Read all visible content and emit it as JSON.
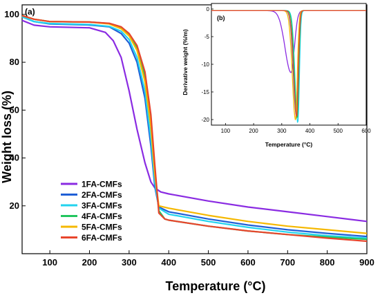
{
  "chart_data": [
    {
      "panel": "(a)",
      "type": "line",
      "xlabel": "Temperature (°C)",
      "ylabel": "Weight loss (%)",
      "xlim": [
        30,
        900
      ],
      "ylim": [
        0,
        104
      ],
      "xticks": [
        100,
        200,
        300,
        400,
        500,
        600,
        700,
        800,
        900
      ],
      "yticks": [
        20,
        40,
        60,
        80,
        100
      ],
      "grid": false,
      "legend": "bottom-left",
      "series": [
        {
          "name": "1FA-CMFs",
          "color": "#8a2be2",
          "points": [
            [
              30,
              97.5
            ],
            [
              60,
              95.5
            ],
            [
              100,
              94.8
            ],
            [
              200,
              94.4
            ],
            [
              240,
              92.5
            ],
            [
              260,
              89
            ],
            [
              280,
              82
            ],
            [
              300,
              68
            ],
            [
              320,
              52
            ],
            [
              340,
              38
            ],
            [
              355,
              30
            ],
            [
              365,
              27.5
            ],
            [
              380,
              25.8
            ],
            [
              400,
              25
            ],
            [
              500,
              22
            ],
            [
              600,
              19.5
            ],
            [
              700,
              17.5
            ],
            [
              800,
              15.5
            ],
            [
              900,
              13.5
            ]
          ]
        },
        {
          "name": "2FA-CMFs",
          "color": "#1f5fd6",
          "points": [
            [
              30,
              99
            ],
            [
              60,
              97
            ],
            [
              100,
              96
            ],
            [
              200,
              95.6
            ],
            [
              250,
              94.8
            ],
            [
              280,
              92
            ],
            [
              300,
              88
            ],
            [
              320,
              80
            ],
            [
              340,
              65
            ],
            [
              355,
              45
            ],
            [
              365,
              28
            ],
            [
              375,
              19.5
            ],
            [
              400,
              17.5
            ],
            [
              500,
              14.5
            ],
            [
              600,
              12
            ],
            [
              700,
              10
            ],
            [
              800,
              8.5
            ],
            [
              900,
              7.2
            ]
          ]
        },
        {
          "name": "3FA-CMFs",
          "color": "#22d3ee",
          "points": [
            [
              30,
              99
            ],
            [
              60,
              97
            ],
            [
              100,
              96.2
            ],
            [
              200,
              95.8
            ],
            [
              250,
              95
            ],
            [
              280,
              93
            ],
            [
              300,
              89.5
            ],
            [
              320,
              82
            ],
            [
              340,
              68
            ],
            [
              355,
              48
            ],
            [
              365,
              30
            ],
            [
              375,
              19
            ],
            [
              400,
              16.5
            ],
            [
              500,
              13.5
            ],
            [
              600,
              11
            ],
            [
              700,
              9
            ],
            [
              800,
              7.5
            ],
            [
              900,
              6.5
            ]
          ]
        },
        {
          "name": "4FA-CMFs",
          "color": "#22c55e",
          "points": [
            [
              30,
              99.5
            ],
            [
              60,
              98
            ],
            [
              100,
              97
            ],
            [
              200,
              96.8
            ],
            [
              250,
              96.2
            ],
            [
              280,
              94.5
            ],
            [
              300,
              91.5
            ],
            [
              320,
              86
            ],
            [
              340,
              74
            ],
            [
              355,
              55
            ],
            [
              365,
              35
            ],
            [
              375,
              18
            ],
            [
              390,
              14.5
            ],
            [
              400,
              14
            ],
            [
              500,
              11.5
            ],
            [
              600,
              9.5
            ],
            [
              700,
              8
            ],
            [
              800,
              7
            ],
            [
              900,
              6
            ]
          ]
        },
        {
          "name": "5FA-CMFs",
          "color": "#f5b800",
          "points": [
            [
              30,
              99.5
            ],
            [
              60,
              98
            ],
            [
              100,
              97
            ],
            [
              200,
              96.8
            ],
            [
              250,
              96
            ],
            [
              280,
              94
            ],
            [
              300,
              91
            ],
            [
              320,
              85
            ],
            [
              340,
              72
            ],
            [
              355,
              53
            ],
            [
              365,
              33
            ],
            [
              375,
              20
            ],
            [
              400,
              19
            ],
            [
              500,
              16
            ],
            [
              600,
              13.5
            ],
            [
              700,
              11.5
            ],
            [
              800,
              10
            ],
            [
              900,
              8.5
            ]
          ]
        },
        {
          "name": "6FA-CMFs",
          "color": "#e8452c",
          "points": [
            [
              30,
              99.5
            ],
            [
              60,
              98
            ],
            [
              100,
              97
            ],
            [
              200,
              96.8
            ],
            [
              250,
              96.3
            ],
            [
              280,
              94.8
            ],
            [
              300,
              92
            ],
            [
              320,
              87
            ],
            [
              340,
              76
            ],
            [
              355,
              58
            ],
            [
              365,
              37
            ],
            [
              375,
              17
            ],
            [
              390,
              14.5
            ],
            [
              400,
              14
            ],
            [
              500,
              11.5
            ],
            [
              600,
              9.5
            ],
            [
              700,
              8
            ],
            [
              800,
              6.5
            ],
            [
              900,
              5.2
            ]
          ]
        }
      ]
    },
    {
      "panel": "(b)",
      "type": "line",
      "xlabel": "Temperature (°C)",
      "ylabel": "Derivative weight (%/m)",
      "xlim": [
        50,
        600
      ],
      "ylim": [
        -21,
        1
      ],
      "xticks": [
        100,
        200,
        300,
        400,
        500,
        600
      ],
      "yticks": [
        0,
        -5,
        -10,
        -15,
        -20
      ],
      "grid": false,
      "series": [
        {
          "name": "1FA-CMFs",
          "color": "#8a2be2",
          "peak_x": 333,
          "peak_y": -11.2,
          "width": 30
        },
        {
          "name": "2FA-CMFs",
          "color": "#1f5fd6",
          "peak_x": 352,
          "peak_y": -19.0,
          "width": 15
        },
        {
          "name": "3FA-CMFs",
          "color": "#22d3ee",
          "peak_x": 357,
          "peak_y": -20.3,
          "width": 14
        },
        {
          "name": "4FA-CMFs",
          "color": "#22c55e",
          "peak_x": 355,
          "peak_y": -19.5,
          "width": 14
        },
        {
          "name": "5FA-CMFs",
          "color": "#f5b800",
          "peak_x": 349,
          "peak_y": -19.8,
          "width": 16
        },
        {
          "name": "6FA-CMFs",
          "color": "#e8452c",
          "peak_x": 353,
          "peak_y": -19.2,
          "width": 15
        }
      ]
    }
  ]
}
